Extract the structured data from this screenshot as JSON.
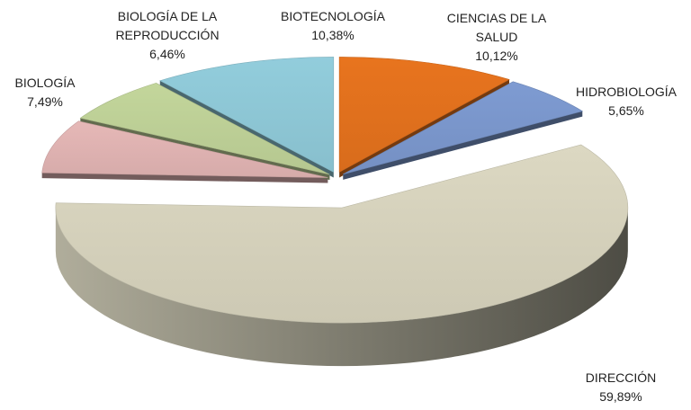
{
  "chart_data": {
    "type": "pie",
    "categories": [
      "CIENCIAS DE LA SALUD",
      "HIDROBIOLOGÍA",
      "DIRECCIÓN",
      "BIOLOGÍA",
      "BIOLOGÍA DE LA REPRODUCCIÓN",
      "BIOTECNOLOGÍA"
    ],
    "values": [
      10.12,
      5.65,
      59.89,
      7.49,
      6.46,
      10.38
    ],
    "value_labels": [
      "10,12%",
      "5,65%",
      "59,89%",
      "7,49%",
      "6,46%",
      "10,38%"
    ],
    "colors": [
      "#e8741e",
      "#7e9bd2",
      "#dcd8c2",
      "#e6b8b7",
      "#c3d69b",
      "#92cddc"
    ]
  }
}
